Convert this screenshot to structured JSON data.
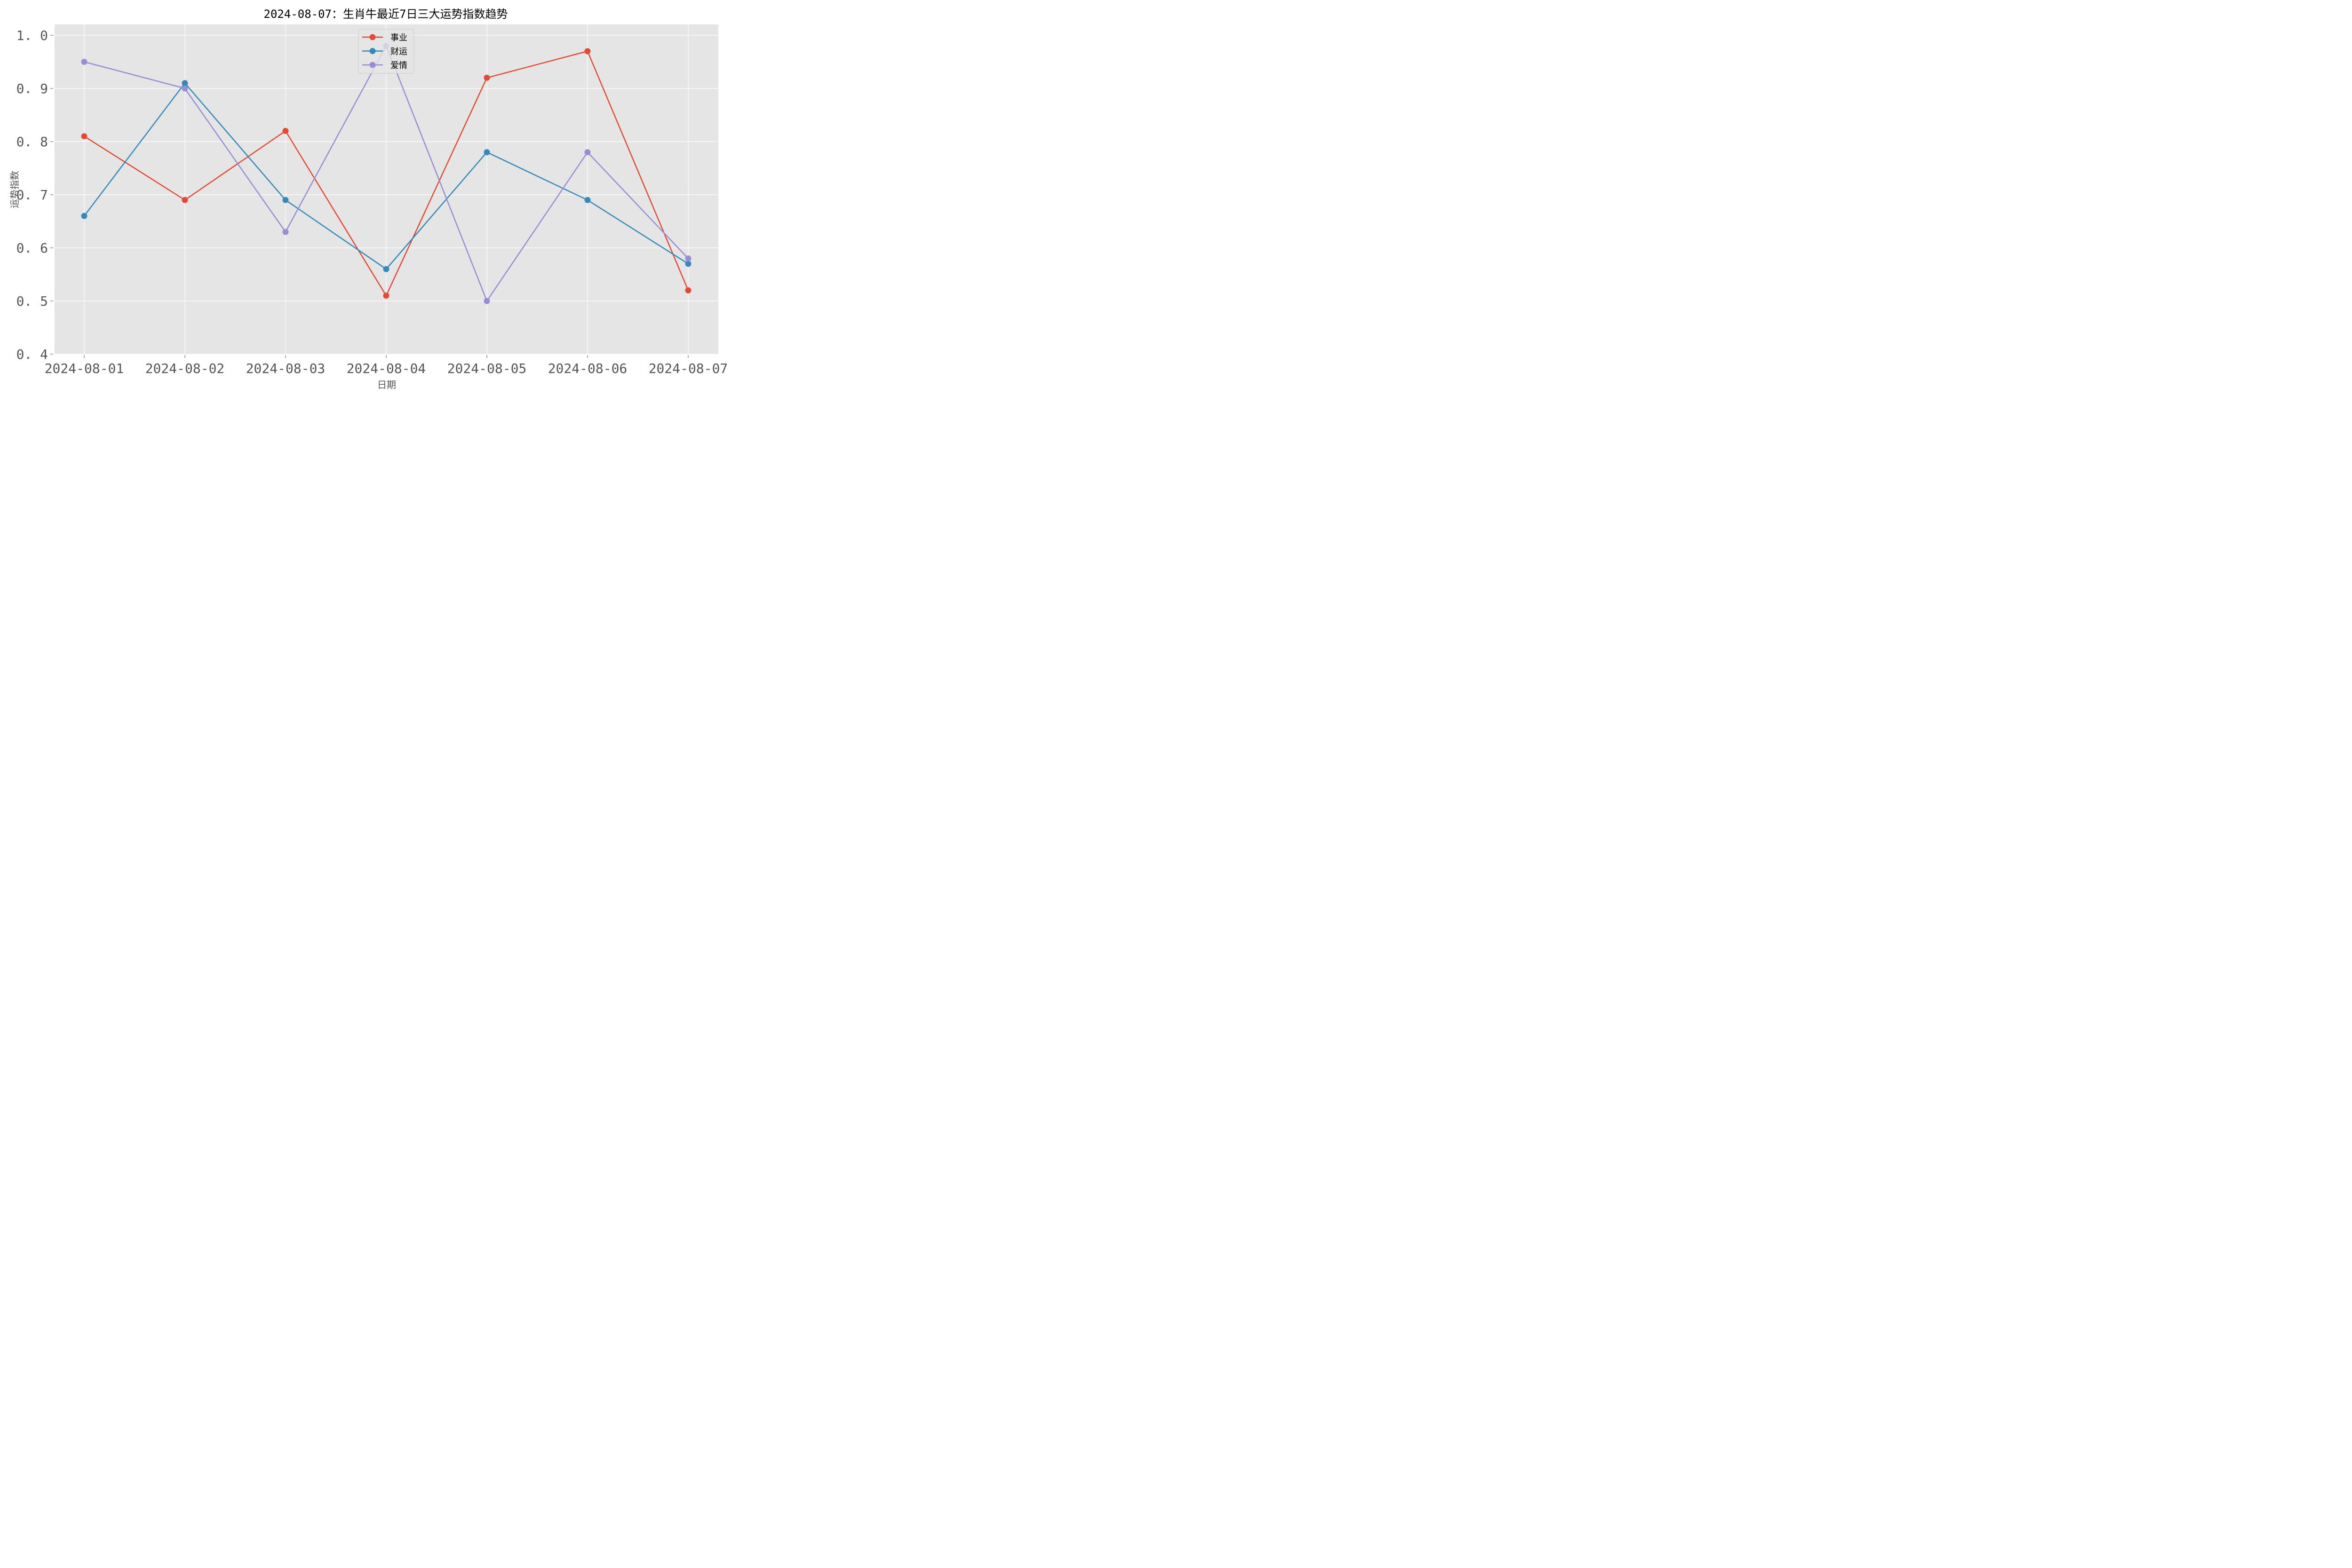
{
  "chart_data": {
    "type": "line",
    "title": "2024-08-07：生肖牛最近7日三大运势指数趋势",
    "xlabel": "日期",
    "ylabel": "运势指数",
    "x": [
      "2024-08-01",
      "2024-08-02",
      "2024-08-03",
      "2024-08-04",
      "2024-08-05",
      "2024-08-06",
      "2024-08-07"
    ],
    "ylim": [
      0.4,
      1.02
    ],
    "yticks": [
      "0.4",
      "0.5",
      "0.6",
      "0.7",
      "0.8",
      "0.9",
      "1.0"
    ],
    "grid": true,
    "legend_position": "upper center",
    "series": [
      {
        "name": "事业",
        "color": "#E24A33",
        "values": [
          0.81,
          0.69,
          0.82,
          0.51,
          0.92,
          0.97,
          0.52
        ]
      },
      {
        "name": "财运",
        "color": "#348ABD",
        "values": [
          0.66,
          0.91,
          0.69,
          0.56,
          0.78,
          0.69,
          0.57
        ]
      },
      {
        "name": "爱情",
        "color": "#988ED5",
        "values": [
          0.95,
          0.9,
          0.63,
          0.98,
          0.5,
          0.78,
          0.58
        ]
      }
    ]
  }
}
